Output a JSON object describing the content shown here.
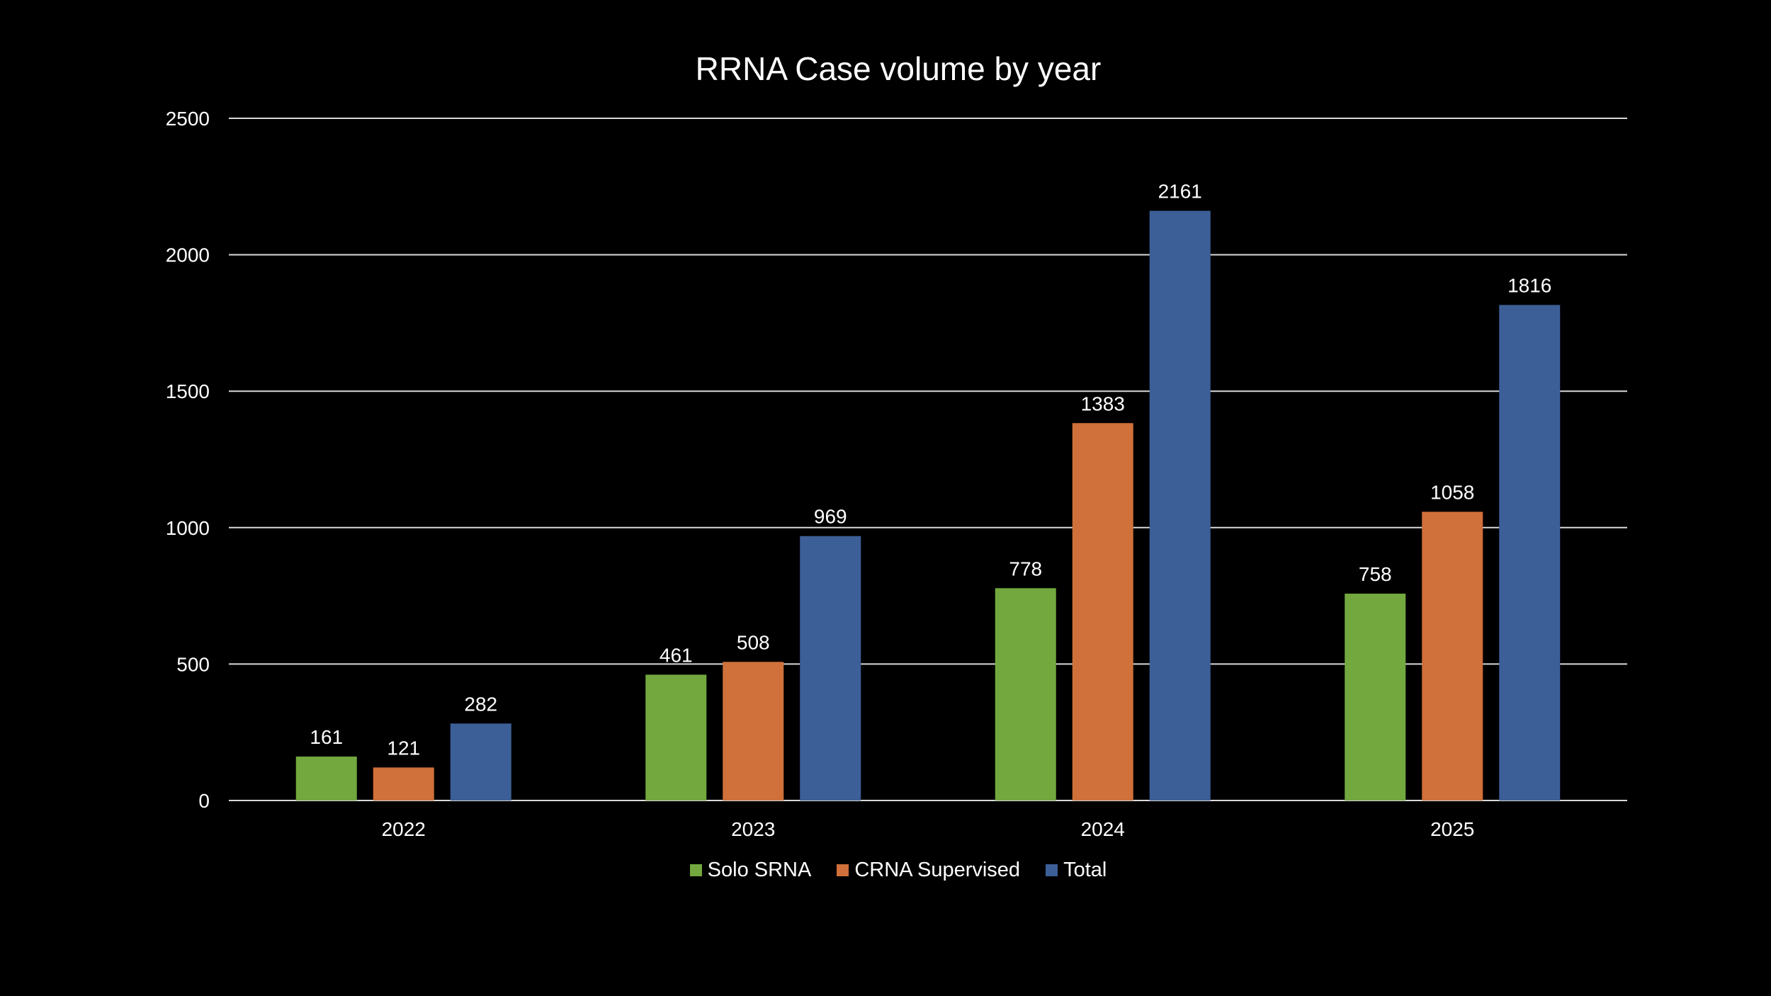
{
  "chart_data": {
    "type": "bar",
    "title": "RRNA Case volume by year",
    "xlabel": "",
    "ylabel": "",
    "categories": [
      "2022",
      "2023",
      "2024",
      "2025"
    ],
    "series": [
      {
        "name": "Solo SRNA",
        "color": "#72A83E",
        "values": [
          161,
          461,
          778,
          758
        ]
      },
      {
        "name": "CRNA Supervised",
        "color": "#D0703A",
        "values": [
          121,
          508,
          1383,
          1058
        ]
      },
      {
        "name": "Total",
        "color": "#3D5F98",
        "values": [
          282,
          969,
          2161,
          1816
        ]
      }
    ],
    "ylim": [
      0,
      2500
    ],
    "yticks": [
      "0",
      "500",
      "1000",
      "1500",
      "2000",
      "2500"
    ],
    "grid": true,
    "legend_position": "bottom",
    "data_labels": true,
    "background": "#000000",
    "text_color": "#FFFFFF",
    "gridline_color": "#D9D9D9"
  }
}
